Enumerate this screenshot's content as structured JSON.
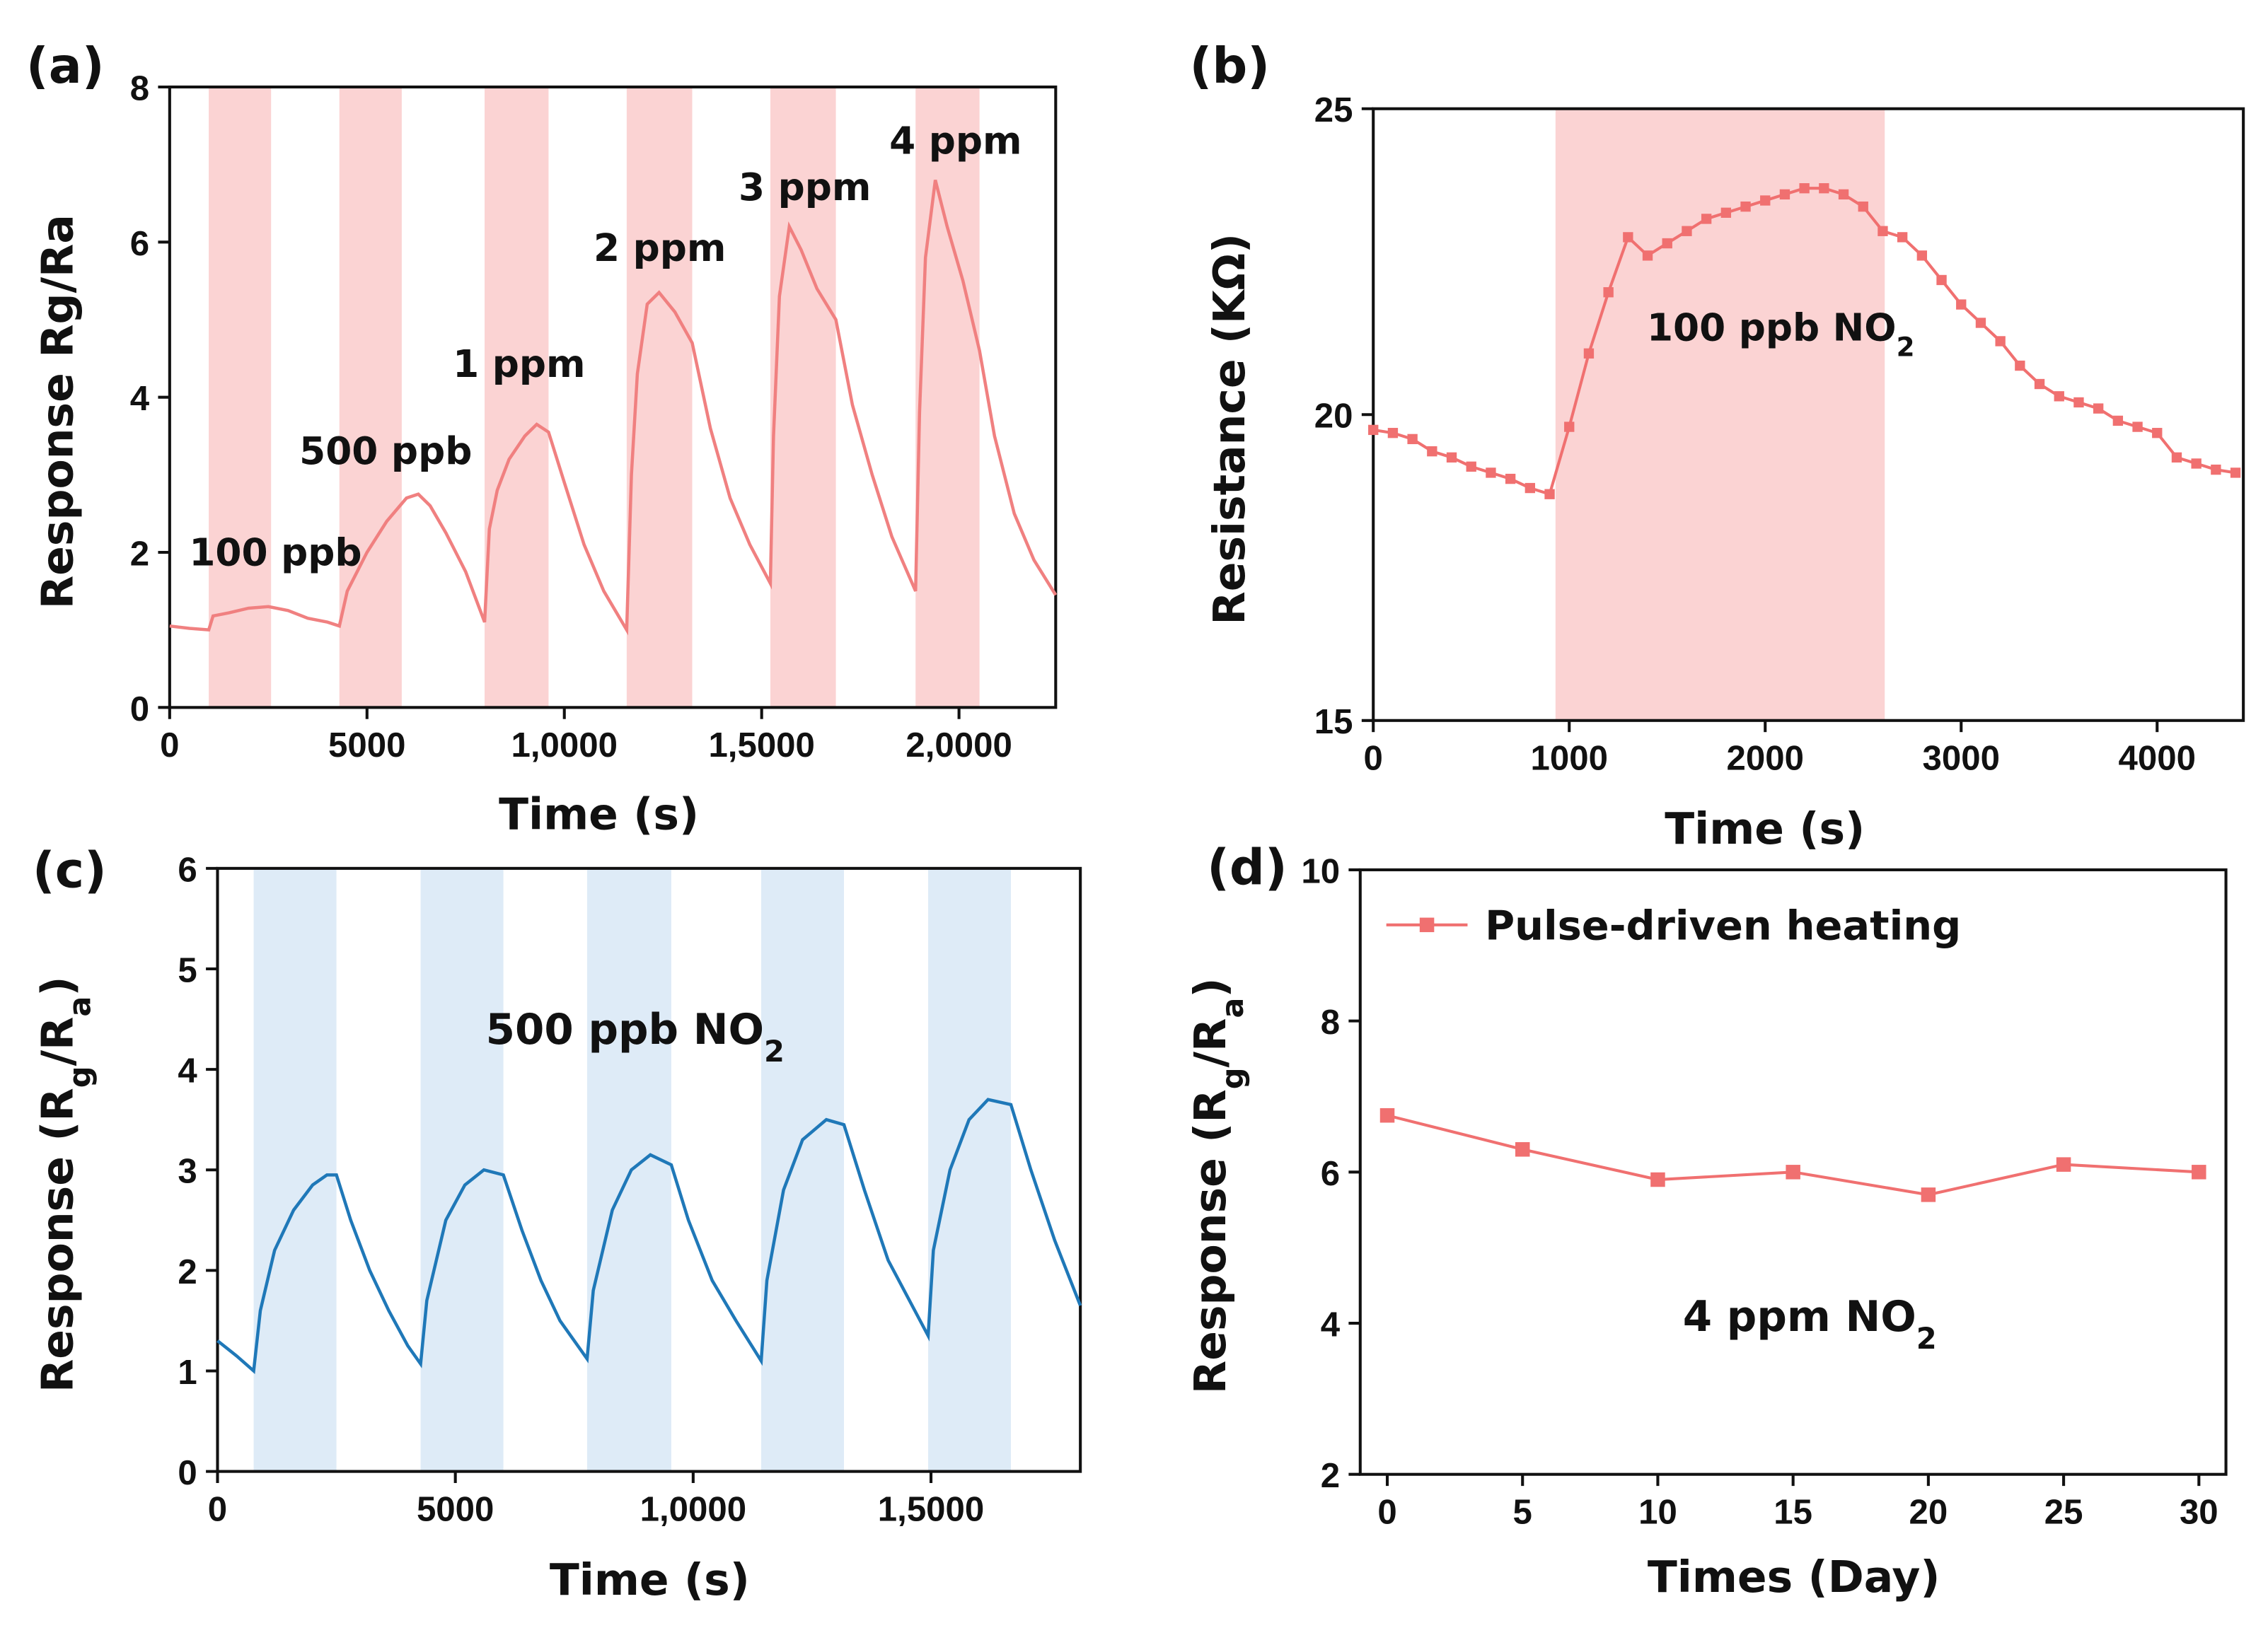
{
  "chart_data": [
    {
      "type": "line",
      "panel_label": "(a)",
      "xlabel": "Time (s)",
      "ylabel": "Response Rg/Ra",
      "xlim": [
        0,
        22450
      ],
      "ylim": [
        0,
        8
      ],
      "xticks": [
        0,
        5000,
        {
          "value": 10000,
          "label": "1,0000"
        },
        {
          "value": 15000,
          "label": "1,5000"
        },
        {
          "value": 20000,
          "label": "2,0000"
        }
      ],
      "yticks": [
        0,
        2,
        4,
        6,
        8
      ],
      "band_color": "#fbd3d3",
      "shaded_x": [
        [
          990,
          2570
        ],
        [
          4300,
          5880
        ],
        [
          7980,
          9600
        ],
        [
          11580,
          13240
        ],
        [
          15220,
          16880
        ],
        [
          18900,
          20520
        ]
      ],
      "annotations": [
        "100 ppb",
        "500 ppb",
        "1 ppm",
        "2 ppm",
        "3 ppm",
        "4 ppm"
      ],
      "x": [
        0,
        500,
        990,
        1100,
        1500,
        2000,
        2500,
        3000,
        3500,
        4000,
        4300,
        4500,
        5000,
        5500,
        6000,
        6300,
        6600,
        7000,
        7500,
        7980,
        8100,
        8300,
        8600,
        9000,
        9300,
        9600,
        10000,
        10500,
        11000,
        11580,
        11700,
        11850,
        12100,
        12400,
        12800,
        13240,
        13700,
        14200,
        14700,
        15220,
        15300,
        15450,
        15700,
        16000,
        16400,
        16880,
        17300,
        17800,
        18300,
        18900,
        19000,
        19150,
        19400,
        19700,
        20100,
        20520,
        20900,
        21400,
        21900,
        22450
      ],
      "series": [
        {
          "color": "#f08080",
          "values": [
            1.05,
            1.02,
            1.0,
            1.18,
            1.22,
            1.28,
            1.3,
            1.25,
            1.15,
            1.1,
            1.05,
            1.5,
            2.0,
            2.4,
            2.7,
            2.75,
            2.6,
            2.25,
            1.75,
            1.1,
            2.3,
            2.8,
            3.2,
            3.5,
            3.65,
            3.55,
            2.9,
            2.1,
            1.5,
            1.0,
            3.0,
            4.3,
            5.2,
            5.35,
            5.1,
            4.7,
            3.6,
            2.7,
            2.1,
            1.6,
            3.5,
            5.3,
            6.2,
            5.9,
            5.4,
            5.0,
            3.9,
            3.0,
            2.2,
            1.5,
            3.8,
            5.8,
            6.8,
            6.2,
            5.5,
            4.6,
            3.5,
            2.5,
            1.9,
            1.45
          ]
        }
      ]
    },
    {
      "type": "line",
      "panel_label": "(b)",
      "xlabel": "Time (s)",
      "ylabel": "Resistance (KΩ)",
      "xlim": [
        0,
        4440
      ],
      "ylim": [
        15,
        25
      ],
      "xticks": [
        0,
        1000,
        2000,
        3000,
        4000
      ],
      "yticks": [
        15,
        20,
        25
      ],
      "band_color": "#fbd3d3",
      "shaded_x": [
        [
          930,
          2610
        ]
      ],
      "annotations": [
        [
          "100 ppb NO",
          "2"
        ]
      ],
      "markers": true,
      "x": [
        0,
        100,
        200,
        300,
        400,
        500,
        600,
        700,
        800,
        900,
        1000,
        1100,
        1200,
        1300,
        1400,
        1500,
        1600,
        1700,
        1800,
        1900,
        2000,
        2100,
        2200,
        2300,
        2400,
        2500,
        2600,
        2700,
        2800,
        2900,
        3000,
        3100,
        3200,
        3300,
        3400,
        3500,
        3600,
        3700,
        3800,
        3900,
        4000,
        4100,
        4200,
        4300,
        4400
      ],
      "series": [
        {
          "color": "#f07070",
          "values": [
            19.75,
            19.7,
            19.6,
            19.4,
            19.3,
            19.15,
            19.05,
            18.95,
            18.8,
            18.7,
            19.8,
            21.0,
            22.0,
            22.9,
            22.6,
            22.8,
            23.0,
            23.2,
            23.3,
            23.4,
            23.5,
            23.6,
            23.7,
            23.7,
            23.6,
            23.4,
            23.0,
            22.9,
            22.6,
            22.2,
            21.8,
            21.5,
            21.2,
            20.8,
            20.5,
            20.3,
            20.2,
            20.1,
            19.9,
            19.8,
            19.7,
            19.3,
            19.2,
            19.1,
            19.05
          ]
        }
      ]
    },
    {
      "type": "line",
      "panel_label": "(c)",
      "xlabel": "Time (s)",
      "ylabel": [
        "Response (R",
        "g",
        "/R",
        "a",
        ")"
      ],
      "xlim": [
        0,
        18140
      ],
      "ylim": [
        0,
        6
      ],
      "xticks": [
        0,
        5000,
        {
          "value": 10000,
          "label": "1,0000"
        },
        {
          "value": 15000,
          "label": "1,5000"
        }
      ],
      "yticks": [
        0,
        1,
        2,
        3,
        4,
        5,
        6
      ],
      "band_color": "#deebf7",
      "shaded_x": [
        [
          760,
          2500
        ],
        [
          4270,
          6010
        ],
        [
          7770,
          9540
        ],
        [
          11430,
          13170
        ],
        [
          14940,
          16680
        ]
      ],
      "annotations": [
        [
          "500 ppb NO",
          "2"
        ]
      ],
      "x": [
        0,
        400,
        760,
        900,
        1200,
        1600,
        2000,
        2300,
        2500,
        2800,
        3200,
        3600,
        4000,
        4270,
        4400,
        4800,
        5200,
        5600,
        6010,
        6400,
        6800,
        7200,
        7770,
        7900,
        8300,
        8700,
        9100,
        9540,
        9900,
        10400,
        10900,
        11430,
        11550,
        11900,
        12300,
        12800,
        13170,
        13600,
        14100,
        14940,
        15050,
        15400,
        15800,
        16200,
        16680,
        17100,
        17600,
        18140
      ],
      "series": [
        {
          "color": "#1f78b8",
          "values": [
            1.3,
            1.15,
            1.0,
            1.6,
            2.2,
            2.6,
            2.85,
            2.95,
            2.95,
            2.5,
            2.0,
            1.6,
            1.25,
            1.07,
            1.7,
            2.5,
            2.85,
            3.0,
            2.95,
            2.4,
            1.9,
            1.5,
            1.12,
            1.8,
            2.6,
            3.0,
            3.15,
            3.05,
            2.5,
            1.9,
            1.5,
            1.1,
            1.9,
            2.8,
            3.3,
            3.5,
            3.45,
            2.8,
            2.1,
            1.35,
            2.2,
            3.0,
            3.5,
            3.7,
            3.65,
            3.0,
            2.3,
            1.65
          ]
        }
      ]
    },
    {
      "type": "line",
      "panel_label": "(d)",
      "xlabel": "Times (Day)",
      "ylabel": [
        "Response (R",
        "g",
        "/R",
        "a",
        ")"
      ],
      "xlim": [
        -1,
        31
      ],
      "ylim": [
        2,
        10
      ],
      "xticks": [
        0,
        5,
        10,
        15,
        20,
        25,
        30
      ],
      "yticks": [
        2,
        4,
        6,
        8,
        10
      ],
      "annotations": [
        [
          "4 ppm NO",
          "2"
        ]
      ],
      "markers": true,
      "legend": "upper left",
      "x": [
        0,
        5,
        10,
        15,
        20,
        25,
        30
      ],
      "series": [
        {
          "name": "Pulse-driven heating",
          "color": "#f07070",
          "values": [
            6.75,
            6.3,
            5.9,
            6.0,
            5.7,
            6.1,
            6.0
          ]
        }
      ]
    }
  ]
}
